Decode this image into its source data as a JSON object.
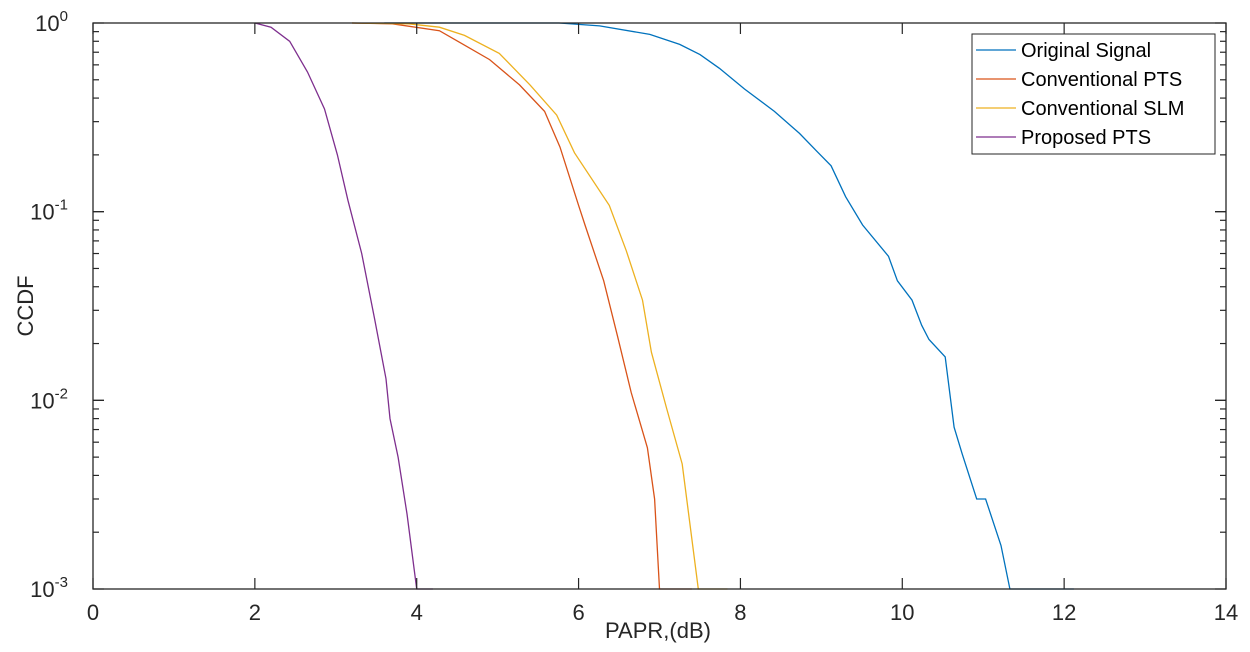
{
  "chart_data": {
    "type": "line",
    "title": "",
    "xlabel": "PAPR,(dB)",
    "ylabel": "CCDF",
    "xlim": [
      0,
      14
    ],
    "ylim": [
      0.001,
      1
    ],
    "yscale": "log",
    "grid": false,
    "legend_position": "upper right",
    "x_ticks": [
      0,
      2,
      4,
      6,
      8,
      10,
      12,
      14
    ],
    "y_ticks": [
      {
        "base": "10",
        "exp": "0"
      },
      {
        "base": "10",
        "exp": "-1"
      },
      {
        "base": "10",
        "exp": "-2"
      },
      {
        "base": "10",
        "exp": "-3"
      }
    ],
    "series": [
      {
        "name": "Original Signal",
        "color": "#0072BD",
        "x": [
          3.6,
          5.76,
          6.26,
          6.88,
          7.25,
          7.5,
          7.74,
          8.05,
          8.42,
          8.73,
          8.94,
          9.12,
          9.3,
          9.51,
          9.83,
          9.94,
          10.12,
          10.24,
          10.33,
          10.53,
          10.64,
          10.74,
          10.92,
          11.03,
          11.22,
          11.33,
          12.12
        ],
        "y": [
          1.0,
          1.0,
          0.965,
          0.87,
          0.77,
          0.68,
          0.575,
          0.447,
          0.34,
          0.26,
          0.21,
          0.175,
          0.12,
          0.085,
          0.058,
          0.043,
          0.034,
          0.025,
          0.021,
          0.017,
          0.0072,
          0.0052,
          0.003,
          0.003,
          0.0017,
          0.001,
          0.001
        ]
      },
      {
        "name": "Conventional PTS",
        "color": "#D95319",
        "x": [
          3.2,
          3.7,
          4.28,
          4.53,
          4.9,
          5.27,
          5.58,
          5.77,
          6.0,
          6.08,
          6.31,
          6.48,
          6.65,
          6.85,
          6.94,
          7.0,
          7.4
        ],
        "y": [
          1.0,
          0.99,
          0.91,
          0.79,
          0.64,
          0.47,
          0.34,
          0.22,
          0.108,
          0.085,
          0.043,
          0.022,
          0.011,
          0.0056,
          0.003,
          0.001,
          0.001
        ]
      },
      {
        "name": "Conventional SLM",
        "color": "#EDB120",
        "x": [
          3.2,
          3.9,
          4.28,
          4.59,
          5.02,
          5.4,
          5.73,
          5.95,
          6.38,
          6.59,
          6.79,
          6.9,
          7.09,
          7.28,
          7.48,
          7.84
        ],
        "y": [
          1.0,
          0.99,
          0.95,
          0.86,
          0.69,
          0.47,
          0.325,
          0.205,
          0.108,
          0.062,
          0.034,
          0.018,
          0.009,
          0.0046,
          0.001,
          0.001
        ]
      },
      {
        "name": "Proposed PTS",
        "color": "#7E2F8E",
        "x": [
          2.0,
          2.2,
          2.43,
          2.65,
          2.86,
          3.02,
          3.15,
          3.32,
          3.48,
          3.62,
          3.67,
          3.77,
          3.88,
          4.0,
          4.2
        ],
        "y": [
          1.0,
          0.95,
          0.8,
          0.55,
          0.35,
          0.2,
          0.115,
          0.06,
          0.027,
          0.013,
          0.008,
          0.005,
          0.0025,
          0.001,
          0.001
        ]
      }
    ]
  }
}
